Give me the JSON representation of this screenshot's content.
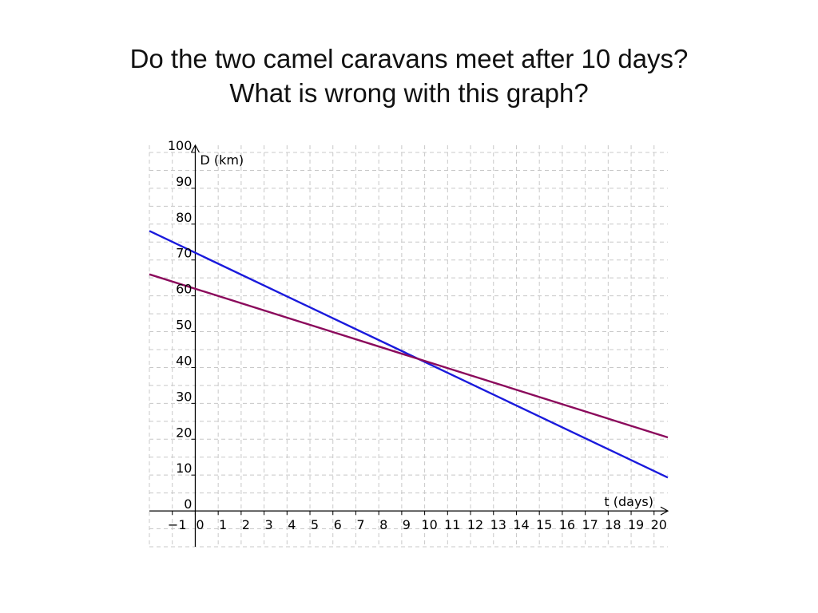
{
  "slide": {
    "title_line1": "Do the two camel caravans meet after 10 days?",
    "title_line2": "What is wrong with this graph?"
  },
  "chart_data": {
    "type": "line",
    "xlabel": "t (days)",
    "ylabel": "D (km)",
    "xlim": [
      -2,
      20.6
    ],
    "ylim": [
      -10,
      102
    ],
    "xticks": [
      -1,
      0,
      1,
      2,
      3,
      4,
      5,
      6,
      7,
      8,
      9,
      10,
      11,
      12,
      13,
      14,
      15,
      16,
      17,
      18,
      19,
      20
    ],
    "xtick_labels": [
      "−1",
      "0",
      "1",
      "2",
      "3",
      "4",
      "5",
      "6",
      "7",
      "8",
      "9",
      "10",
      "11",
      "12",
      "13",
      "14",
      "15",
      "16",
      "17",
      "18",
      "19",
      "20"
    ],
    "yticks": [
      0,
      10,
      20,
      30,
      40,
      50,
      60,
      70,
      80,
      90,
      100
    ],
    "ytick_labels": [
      "0",
      "10",
      "20",
      "30",
      "40",
      "50",
      "60",
      "70",
      "80",
      "90",
      "100"
    ],
    "grid": true,
    "grid_style": "dashed",
    "series": [
      {
        "x": [
          -2,
          20.6
        ],
        "y": [
          78.1,
          9.3
        ],
        "color": "#1a1adc"
      },
      {
        "x": [
          -2,
          20.6
        ],
        "y": [
          66.0,
          20.5
        ],
        "color": "#8b0a5c"
      }
    ]
  }
}
